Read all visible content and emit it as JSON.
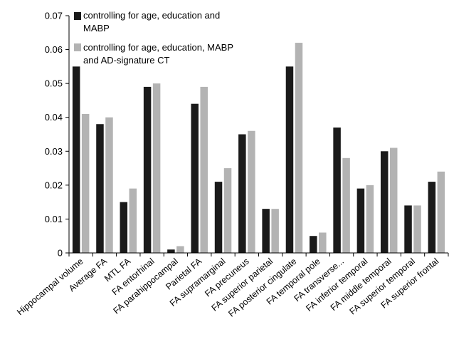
{
  "chart_data": {
    "type": "bar",
    "title": "",
    "xlabel": "",
    "ylabel": "",
    "ylim": [
      0,
      0.07
    ],
    "yticks": [
      "0",
      "0.01",
      "0.02",
      "0.03",
      "0.04",
      "0.05",
      "0.06",
      "0.07"
    ],
    "grid": false,
    "legend_position": "top-left",
    "categories": [
      "Hippocampal volume",
      "Average FA",
      "MTL FA",
      "FA entorhinal",
      "FA parahippocampal",
      "Parietal FA",
      "FA supramarginal",
      "FA precuneus",
      "FA superior parietal",
      "FA posterior cingulate",
      "FA temporal pole",
      "FA transverse...",
      "FA inferior temporal",
      "FA middle temporal",
      "FA superior temporal",
      "FA superior frontal"
    ],
    "series": [
      {
        "name": "controlling for age, education and MABP",
        "name_lines": [
          "controlling for age, education and",
          "MABP"
        ],
        "color": "#1a1a1a",
        "values": [
          0.055,
          0.038,
          0.015,
          0.049,
          0.001,
          0.044,
          0.021,
          0.035,
          0.013,
          0.055,
          0.005,
          0.037,
          0.019,
          0.03,
          0.014,
          0.021
        ]
      },
      {
        "name": "controlling for age, education, MABP and AD-signature CT",
        "name_lines": [
          "controlling for age, education, MABP",
          "and AD-signature CT"
        ],
        "color": "#b3b3b3",
        "values": [
          0.041,
          0.04,
          0.019,
          0.05,
          0.002,
          0.049,
          0.025,
          0.036,
          0.013,
          0.062,
          0.006,
          0.028,
          0.02,
          0.031,
          0.014,
          0.024
        ]
      }
    ]
  }
}
